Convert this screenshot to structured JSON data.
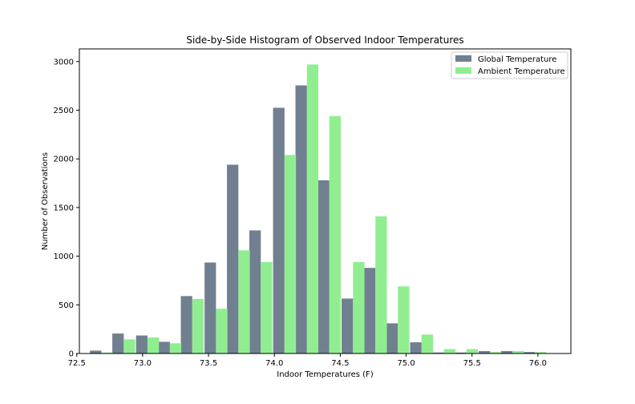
{
  "chart_data": {
    "type": "bar",
    "title": "Side-by-Side Histogram of Observed Indoor Temperatures",
    "xlabel": "Indoor Temperatures (F)",
    "ylabel": "Number of Observations",
    "xlim": [
      72.52,
      76.25
    ],
    "ylim": [
      0,
      3130
    ],
    "xticks": [
      72.5,
      73.0,
      73.5,
      74.0,
      74.5,
      75.0,
      75.5,
      76.0
    ],
    "xtick_labels": [
      "72.5",
      "73.0",
      "73.5",
      "74.0",
      "74.5",
      "75.0",
      "75.5",
      "76.0"
    ],
    "yticks": [
      0,
      500,
      1000,
      1500,
      2000,
      2500,
      3000
    ],
    "ytick_labels": [
      "0",
      "500",
      "1000",
      "1500",
      "2000",
      "2500",
      "3000"
    ],
    "bin_width": 0.1737,
    "bin_starts": [
      72.6,
      72.77,
      72.95,
      73.12,
      73.29,
      73.47,
      73.64,
      73.81,
      73.99,
      74.16,
      74.33,
      74.51,
      74.68,
      74.85,
      75.03,
      75.2,
      75.37,
      75.55,
      75.72,
      75.89
    ],
    "grid": false,
    "legend_position": "upper right",
    "series": [
      {
        "name": "Global Temperature",
        "color": "#708090",
        "values": [
          30,
          205,
          185,
          120,
          590,
          935,
          1940,
          1265,
          2525,
          2755,
          1780,
          565,
          880,
          310,
          115,
          10,
          10,
          25,
          25,
          15
        ]
      },
      {
        "name": "Ambient Temperature",
        "color": "#90ee90",
        "values": [
          10,
          145,
          165,
          105,
          560,
          460,
          1060,
          940,
          2040,
          2970,
          2440,
          940,
          1410,
          690,
          195,
          45,
          45,
          15,
          25,
          15
        ]
      }
    ]
  }
}
